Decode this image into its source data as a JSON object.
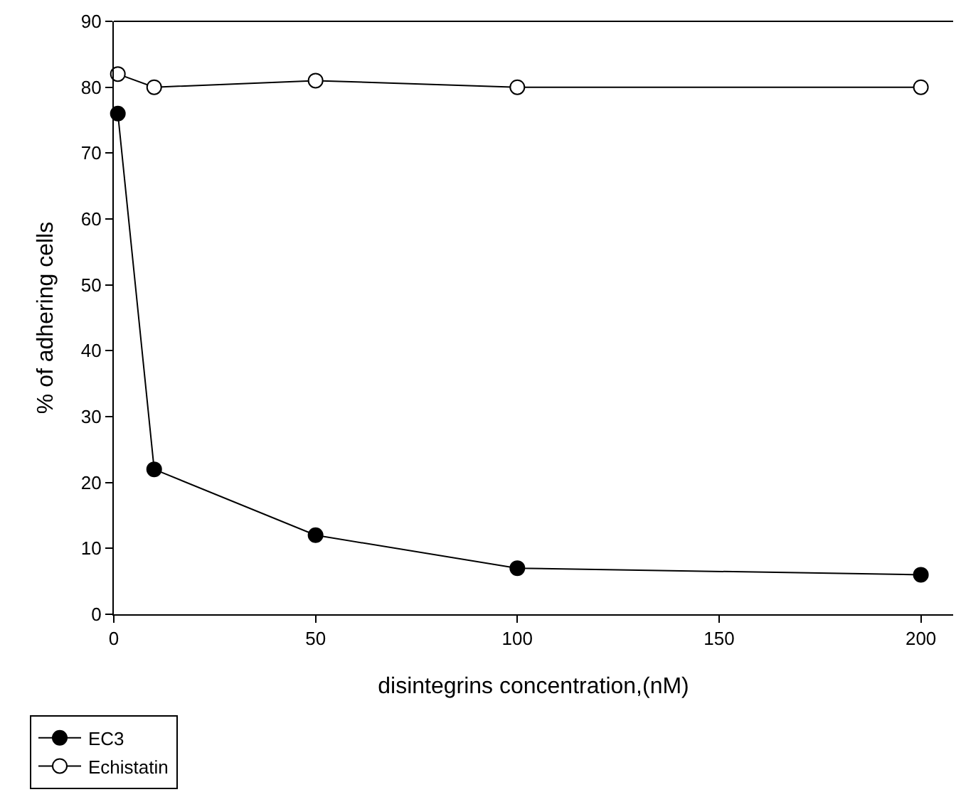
{
  "chart_data": {
    "type": "line",
    "xlabel": "disintegrins concentration,(nM)",
    "ylabel": "% of adhering cells",
    "xlim": [
      0,
      208
    ],
    "xticks": [
      0,
      50,
      100,
      150,
      200
    ],
    "ylim": [
      0,
      90
    ],
    "yticks": [
      0,
      10,
      20,
      30,
      40,
      50,
      60,
      70,
      80,
      90
    ],
    "legend": "bottom left",
    "marker": "circle",
    "line_style": "solid",
    "series": [
      {
        "name": "EC3",
        "color": "#000000",
        "x": [
          1,
          10,
          50,
          100,
          200
        ],
        "values": [
          76,
          22,
          12,
          7,
          6
        ]
      },
      {
        "name": "Echistatin",
        "color": "#ffffff",
        "x": [
          1,
          10,
          50,
          100,
          200
        ],
        "values": [
          82,
          80,
          81,
          80,
          80
        ]
      }
    ]
  }
}
